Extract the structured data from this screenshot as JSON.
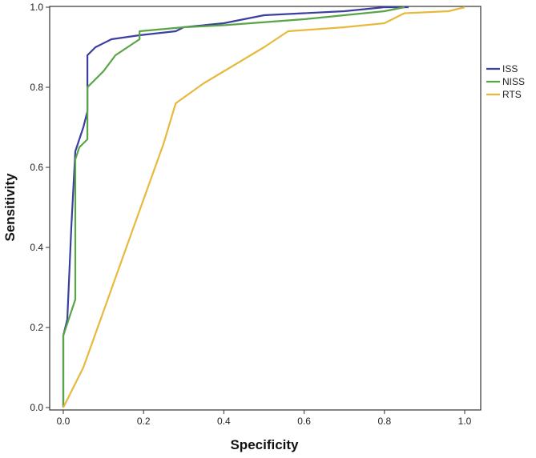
{
  "chart_data": {
    "type": "line",
    "title": "",
    "xlabel": "Specificity",
    "ylabel": "Sensitivity",
    "xlim": [
      0,
      1
    ],
    "ylim": [
      0,
      1
    ],
    "xticks": [
      "0.0",
      "0.2",
      "0.4",
      "0.6",
      "0.8",
      "1.0"
    ],
    "yticks": [
      "0.0",
      "0.2",
      "0.4",
      "0.6",
      "0.8",
      "1.0"
    ],
    "grid": false,
    "legend": "right",
    "series": [
      {
        "name": "ISS",
        "color": "#3a3fa0",
        "points": [
          [
            0,
            0
          ],
          [
            0,
            0.18
          ],
          [
            0.01,
            0.22
          ],
          [
            0.02,
            0.45
          ],
          [
            0.03,
            0.64
          ],
          [
            0.05,
            0.7
          ],
          [
            0.06,
            0.74
          ],
          [
            0.06,
            0.88
          ],
          [
            0.08,
            0.9
          ],
          [
            0.12,
            0.92
          ],
          [
            0.19,
            0.93
          ],
          [
            0.28,
            0.94
          ],
          [
            0.3,
            0.95
          ],
          [
            0.4,
            0.96
          ],
          [
            0.5,
            0.98
          ],
          [
            0.7,
            0.99
          ],
          [
            0.8,
            1.0
          ],
          [
            0.86,
            1.0
          ]
        ]
      },
      {
        "name": "NISS",
        "color": "#5aa448",
        "points": [
          [
            0,
            0
          ],
          [
            0,
            0.18
          ],
          [
            0.03,
            0.27
          ],
          [
            0.03,
            0.62
          ],
          [
            0.04,
            0.65
          ],
          [
            0.06,
            0.67
          ],
          [
            0.06,
            0.8
          ],
          [
            0.1,
            0.84
          ],
          [
            0.13,
            0.88
          ],
          [
            0.19,
            0.92
          ],
          [
            0.19,
            0.94
          ],
          [
            0.3,
            0.95
          ],
          [
            0.4,
            0.955
          ],
          [
            0.6,
            0.97
          ],
          [
            0.7,
            0.98
          ],
          [
            0.8,
            0.99
          ],
          [
            0.85,
            1.0
          ]
        ]
      },
      {
        "name": "RTS",
        "color": "#e7b93d",
        "points": [
          [
            0,
            0
          ],
          [
            0.05,
            0.1
          ],
          [
            0.1,
            0.24
          ],
          [
            0.15,
            0.38
          ],
          [
            0.2,
            0.52
          ],
          [
            0.25,
            0.66
          ],
          [
            0.28,
            0.76
          ],
          [
            0.35,
            0.81
          ],
          [
            0.45,
            0.87
          ],
          [
            0.5,
            0.9
          ],
          [
            0.56,
            0.94
          ],
          [
            0.7,
            0.95
          ],
          [
            0.8,
            0.96
          ],
          [
            0.84,
            0.98
          ],
          [
            0.85,
            0.985
          ],
          [
            0.96,
            0.99
          ],
          [
            1.0,
            1.0
          ]
        ]
      }
    ]
  }
}
